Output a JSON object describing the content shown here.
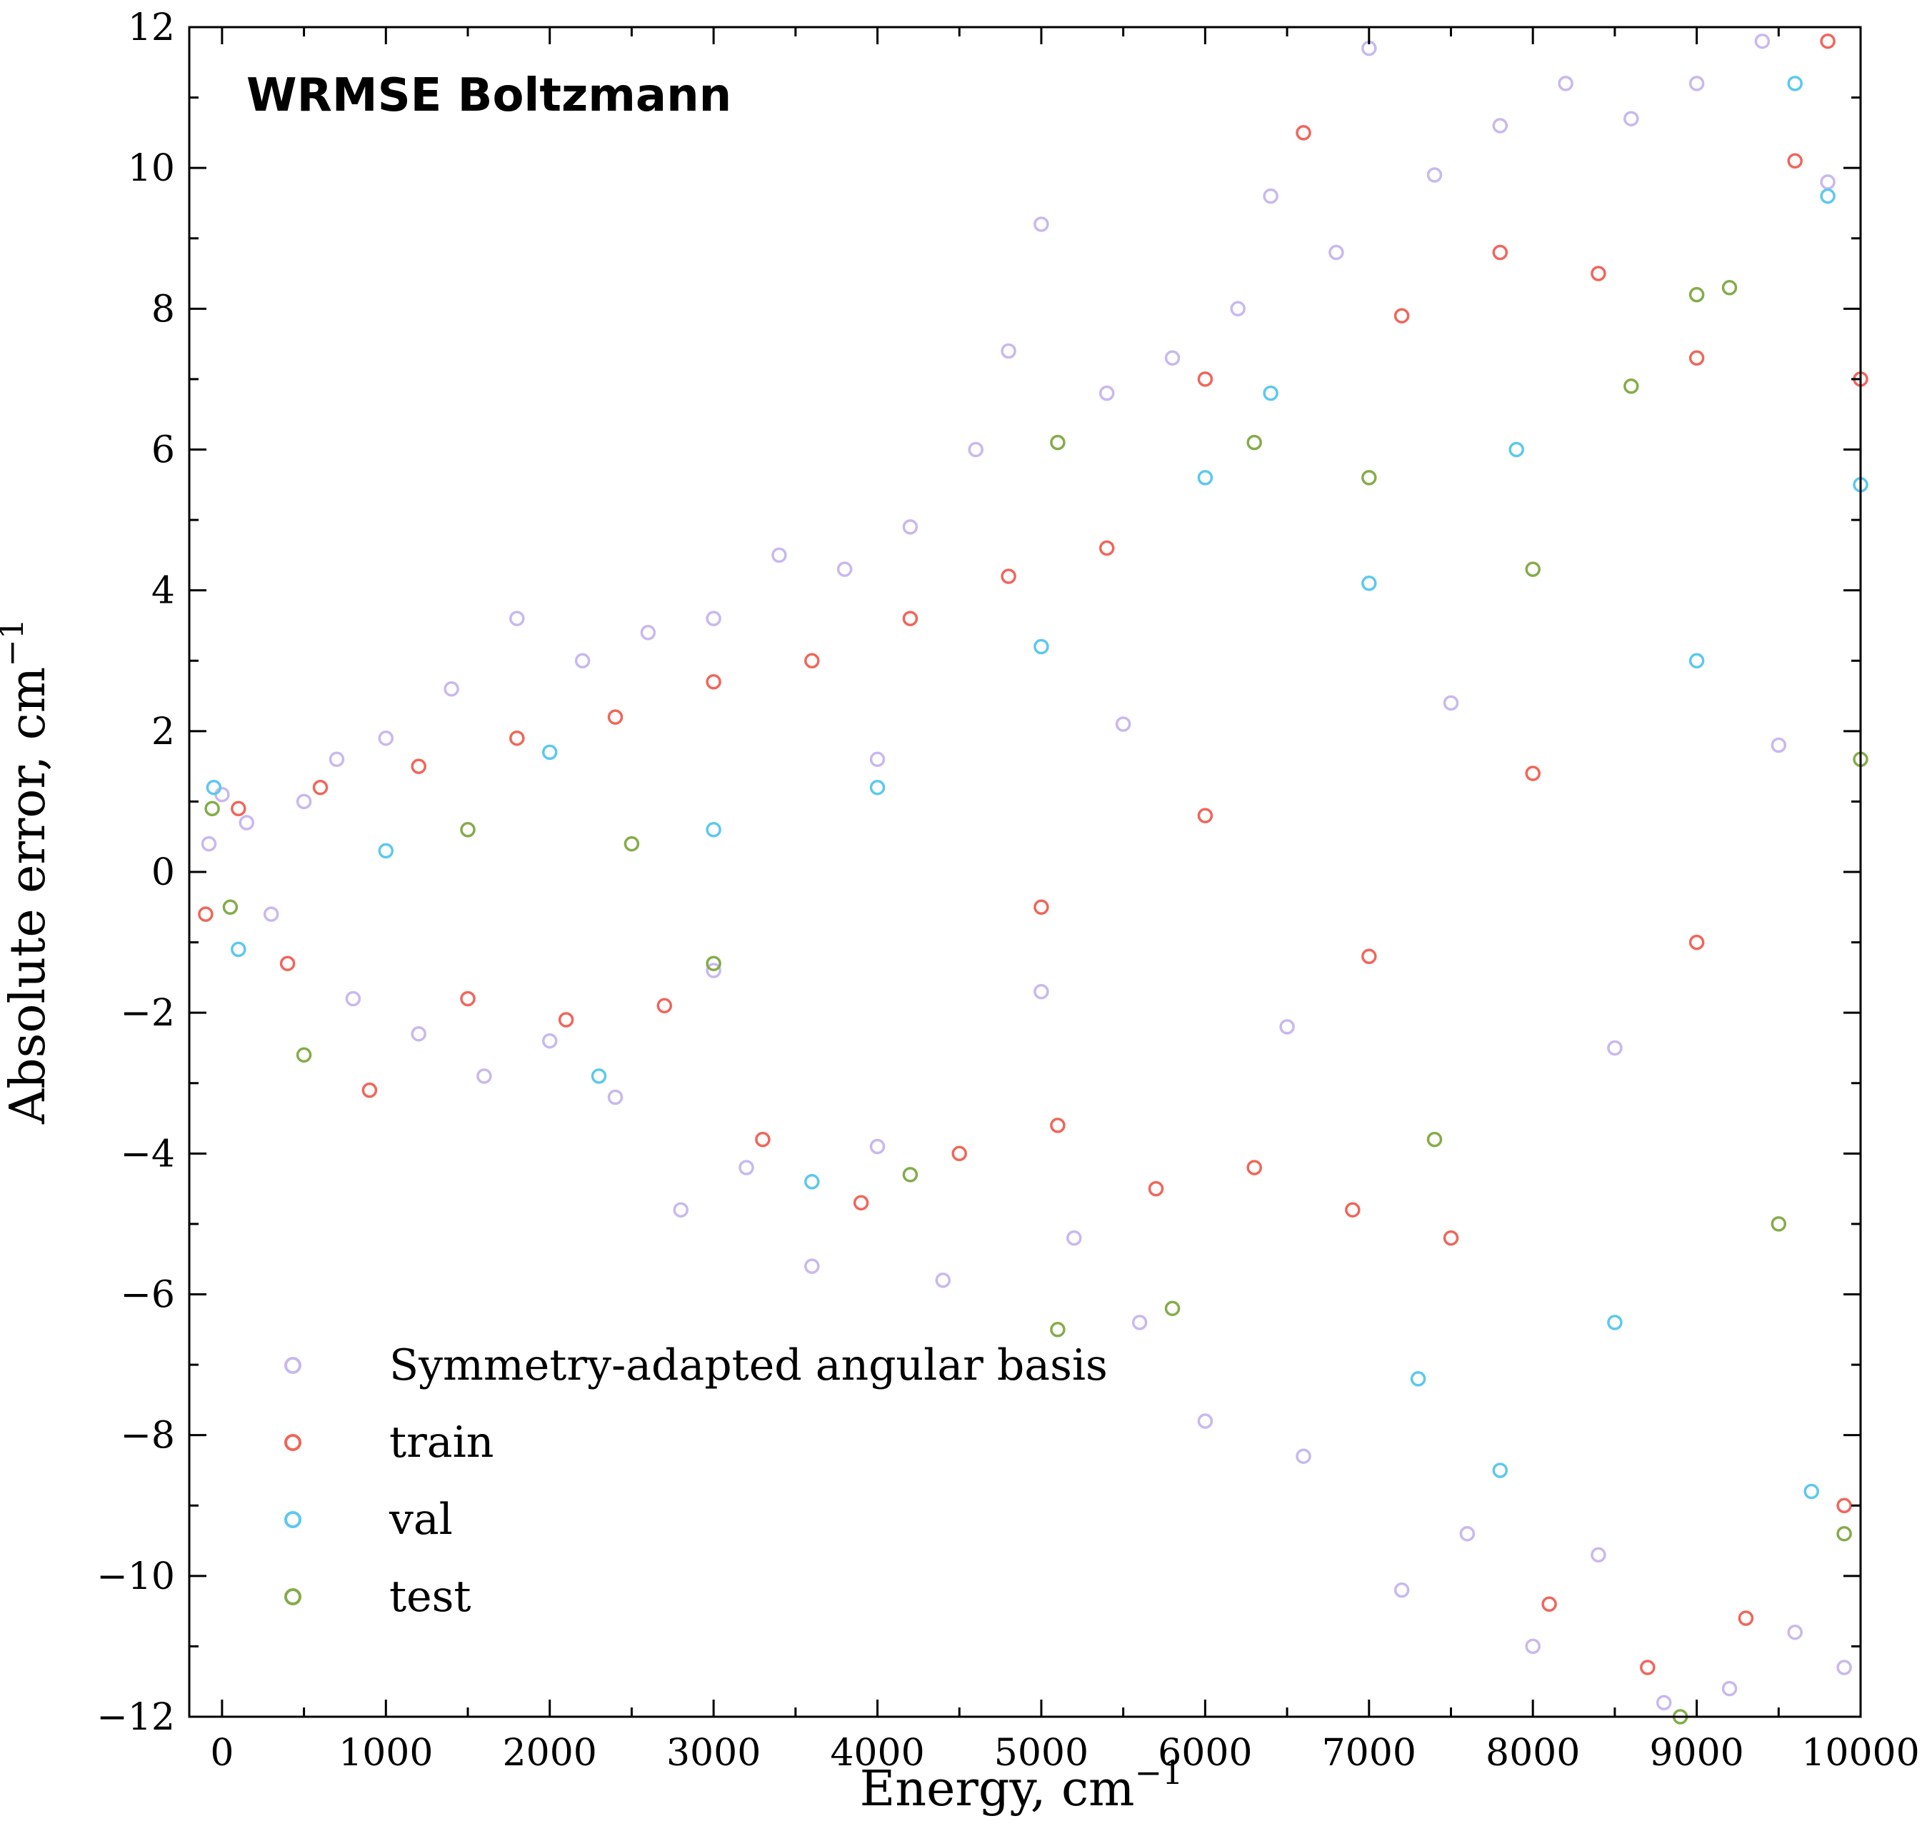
{
  "chart_data": {
    "type": "scatter",
    "annotation": "WRMSE Boltzmann",
    "xlabel": "Energy, cm",
    "xlabel_sup": "−1",
    "ylabel": "Absolute error, cm",
    "ylabel_sup": "−1",
    "xlim": [
      -200,
      10000
    ],
    "ylim": [
      -12,
      12
    ],
    "x_ticks": [
      0,
      1000,
      2000,
      3000,
      4000,
      5000,
      6000,
      7000,
      8000,
      9000,
      10000
    ],
    "x_tick_labels": [
      "0",
      "1000",
      "2000",
      "3000",
      "4000",
      "5000",
      "6000",
      "7000",
      "8000",
      "9000",
      "10000"
    ],
    "y_ticks": [
      -12,
      -10,
      -8,
      -6,
      -4,
      -2,
      0,
      2,
      4,
      6,
      8,
      10,
      12
    ],
    "y_tick_labels": [
      "−12",
      "−10",
      "−8",
      "−6",
      "−4",
      "−2",
      "0",
      "2",
      "4",
      "6",
      "8",
      "10",
      "12"
    ],
    "marker": "open-circle",
    "grid": false,
    "legend_position": "lower-left",
    "series": [
      {
        "name": "Symmetry-adapted angular basis",
        "color": "#c9b8ef",
        "points": [
          [
            -80,
            0.4
          ],
          [
            0,
            1.1
          ],
          [
            150,
            0.7
          ],
          [
            300,
            -0.6
          ],
          [
            500,
            1.0
          ],
          [
            700,
            1.6
          ],
          [
            800,
            -1.8
          ],
          [
            1000,
            1.9
          ],
          [
            1200,
            -2.3
          ],
          [
            1400,
            2.6
          ],
          [
            1600,
            -2.9
          ],
          [
            1800,
            3.6
          ],
          [
            2000,
            -2.4
          ],
          [
            2200,
            3.0
          ],
          [
            2400,
            -3.2
          ],
          [
            2600,
            3.4
          ],
          [
            2800,
            -4.8
          ],
          [
            3000,
            3.6
          ],
          [
            3200,
            -4.2
          ],
          [
            3400,
            4.5
          ],
          [
            3600,
            -5.6
          ],
          [
            3800,
            4.3
          ],
          [
            4000,
            -3.9
          ],
          [
            4200,
            4.9
          ],
          [
            4400,
            -5.8
          ],
          [
            4600,
            6.0
          ],
          [
            4800,
            7.4
          ],
          [
            5000,
            9.2
          ],
          [
            5200,
            -5.2
          ],
          [
            5400,
            6.8
          ],
          [
            5600,
            -6.4
          ],
          [
            5800,
            7.3
          ],
          [
            6000,
            -7.8
          ],
          [
            6200,
            8.0
          ],
          [
            6400,
            9.6
          ],
          [
            6600,
            -8.3
          ],
          [
            6800,
            8.8
          ],
          [
            7000,
            11.7
          ],
          [
            7200,
            -10.2
          ],
          [
            7400,
            9.9
          ],
          [
            7600,
            -9.4
          ],
          [
            7800,
            10.6
          ],
          [
            8000,
            -11.0
          ],
          [
            8200,
            11.2
          ],
          [
            8400,
            -9.7
          ],
          [
            8600,
            10.7
          ],
          [
            8800,
            -11.8
          ],
          [
            9000,
            11.2
          ],
          [
            9200,
            -11.6
          ],
          [
            9400,
            11.8
          ],
          [
            9600,
            -10.8
          ],
          [
            9800,
            9.8
          ],
          [
            9900,
            -11.3
          ],
          [
            5500,
            2.1
          ],
          [
            6500,
            -2.2
          ],
          [
            7500,
            2.4
          ],
          [
            8500,
            -2.5
          ],
          [
            9500,
            1.8
          ],
          [
            3000,
            -1.4
          ],
          [
            4000,
            1.6
          ],
          [
            5000,
            -1.7
          ]
        ]
      },
      {
        "name": "train",
        "color": "#f0665a",
        "points": [
          [
            -100,
            -0.6
          ],
          [
            100,
            0.9
          ],
          [
            400,
            -1.3
          ],
          [
            600,
            1.2
          ],
          [
            900,
            -3.1
          ],
          [
            1200,
            1.5
          ],
          [
            1500,
            -1.8
          ],
          [
            1800,
            1.9
          ],
          [
            2100,
            -2.1
          ],
          [
            2400,
            2.2
          ],
          [
            2700,
            -1.9
          ],
          [
            3000,
            2.7
          ],
          [
            3300,
            -3.8
          ],
          [
            3600,
            3.0
          ],
          [
            3900,
            -4.7
          ],
          [
            4200,
            3.6
          ],
          [
            4500,
            -4.0
          ],
          [
            4800,
            4.2
          ],
          [
            5100,
            -3.6
          ],
          [
            5400,
            4.6
          ],
          [
            5700,
            -4.5
          ],
          [
            6000,
            7.0
          ],
          [
            6300,
            -4.2
          ],
          [
            6600,
            10.5
          ],
          [
            6900,
            -4.8
          ],
          [
            7200,
            7.9
          ],
          [
            7500,
            -5.2
          ],
          [
            7800,
            8.8
          ],
          [
            8100,
            -10.4
          ],
          [
            8400,
            8.5
          ],
          [
            8700,
            -11.3
          ],
          [
            9000,
            7.3
          ],
          [
            9300,
            -10.6
          ],
          [
            9600,
            10.1
          ],
          [
            9800,
            11.8
          ],
          [
            9900,
            -9.0
          ],
          [
            10000,
            7.0
          ],
          [
            5000,
            -0.5
          ],
          [
            6000,
            0.8
          ],
          [
            7000,
            -1.2
          ],
          [
            8000,
            1.4
          ],
          [
            9000,
            -1.0
          ]
        ]
      },
      {
        "name": "val",
        "color": "#5cc8ef",
        "points": [
          [
            -50,
            1.2
          ],
          [
            100,
            -1.1
          ],
          [
            1000,
            0.3
          ],
          [
            2000,
            1.7
          ],
          [
            2300,
            -2.9
          ],
          [
            3000,
            0.6
          ],
          [
            3600,
            -4.4
          ],
          [
            4000,
            1.2
          ],
          [
            5000,
            3.2
          ],
          [
            6000,
            5.6
          ],
          [
            6400,
            6.8
          ],
          [
            7000,
            4.1
          ],
          [
            7300,
            -7.2
          ],
          [
            7900,
            6.0
          ],
          [
            7800,
            -8.5
          ],
          [
            8500,
            -6.4
          ],
          [
            9000,
            3.0
          ],
          [
            9600,
            11.2
          ],
          [
            9800,
            9.6
          ],
          [
            9700,
            -8.8
          ],
          [
            10000,
            5.5
          ]
        ]
      },
      {
        "name": "test",
        "color": "#84ac4a",
        "points": [
          [
            -60,
            0.9
          ],
          [
            50,
            -0.5
          ],
          [
            500,
            -2.6
          ],
          [
            1500,
            0.6
          ],
          [
            2500,
            0.4
          ],
          [
            3000,
            -1.3
          ],
          [
            4200,
            -4.3
          ],
          [
            5100,
            6.1
          ],
          [
            5100,
            -6.5
          ],
          [
            5800,
            -6.2
          ],
          [
            6300,
            6.1
          ],
          [
            7000,
            5.6
          ],
          [
            7400,
            -3.8
          ],
          [
            8000,
            4.3
          ],
          [
            8600,
            6.9
          ],
          [
            8900,
            -12.0
          ],
          [
            9000,
            8.2
          ],
          [
            9200,
            8.3
          ],
          [
            9500,
            -5.0
          ],
          [
            9900,
            -9.4
          ],
          [
            10000,
            1.6
          ]
        ]
      }
    ]
  }
}
